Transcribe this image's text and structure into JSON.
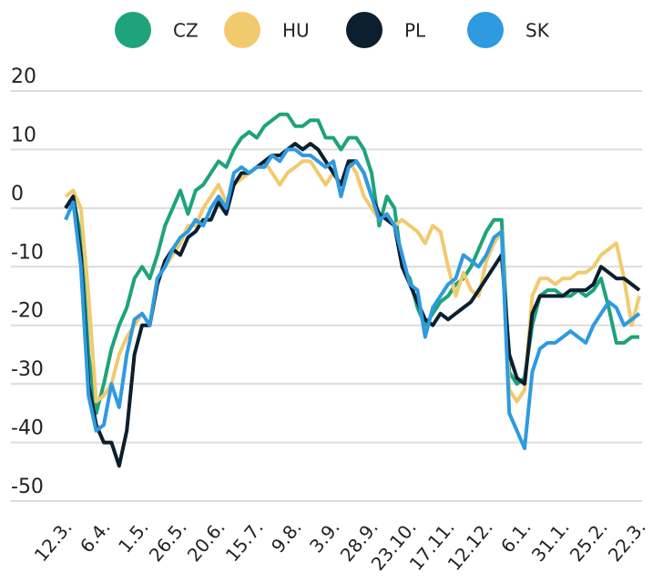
{
  "chart_data": {
    "type": "line",
    "categories": [
      "12.3.",
      null,
      null,
      null,
      null,
      "6.4.",
      null,
      null,
      null,
      null,
      "1.5.",
      null,
      null,
      null,
      null,
      "26.5.",
      null,
      null,
      null,
      null,
      "20.6.",
      null,
      null,
      null,
      null,
      "15.7.",
      null,
      null,
      null,
      null,
      "9.8.",
      null,
      null,
      null,
      null,
      "3.9.",
      null,
      null,
      null,
      null,
      "28.9.",
      null,
      null,
      null,
      null,
      "23.10.",
      null,
      null,
      null,
      null,
      "17.11.",
      null,
      null,
      null,
      null,
      "12.12.",
      null,
      null,
      null,
      null,
      "6.1.",
      null,
      null,
      null,
      null,
      "31.1.",
      null,
      null,
      null,
      null,
      "25.2.",
      null,
      null,
      null,
      null,
      "22.3."
    ],
    "series": [
      {
        "name": "CZ",
        "color": "#1ea37a",
        "values": [
          0,
          2,
          -5,
          -25,
          -35,
          -30,
          -24,
          -20,
          -17,
          -12,
          -10,
          -12,
          -8,
          -3,
          0,
          3,
          -1,
          3,
          4,
          6,
          8,
          7,
          10,
          12,
          13,
          12,
          14,
          15,
          16,
          16,
          14,
          14,
          15,
          15,
          12,
          12,
          10,
          12,
          12,
          10,
          6,
          -3,
          2,
          0,
          -10,
          -12,
          -17,
          -20,
          -18,
          -16,
          -15,
          -13,
          -12,
          -10,
          -7,
          -4,
          -2,
          -2,
          -28,
          -30,
          -29,
          -20,
          -15,
          -14,
          -14,
          -15,
          -15,
          -14,
          -15,
          -14,
          -12,
          -17,
          -23,
          -23,
          -22,
          -22
        ]
      },
      {
        "name": "HU",
        "color": "#f2ca6e",
        "values": [
          2,
          3,
          0,
          -15,
          -33,
          -32,
          -30,
          -25,
          -22,
          -20,
          -18,
          -20,
          -12,
          -10,
          -8,
          -6,
          -3,
          -3,
          0,
          2,
          4,
          1,
          4,
          5,
          6,
          7,
          8,
          6,
          4,
          6,
          7,
          8,
          8,
          6,
          4,
          6,
          4,
          8,
          6,
          2,
          0,
          -2,
          -1,
          -3,
          -2,
          -3,
          -4,
          -6,
          -3,
          -4,
          -10,
          -15,
          -11,
          -14,
          -15,
          -9,
          -6,
          -4,
          -31,
          -33,
          -31,
          -15,
          -12,
          -12,
          -13,
          -12,
          -12,
          -11,
          -11,
          -10,
          -8,
          -7,
          -6,
          -12,
          -20,
          -15
        ]
      },
      {
        "name": "PL",
        "color": "#0c1f2e",
        "values": [
          0,
          2,
          -8,
          -30,
          -37,
          -40,
          -40,
          -44,
          -38,
          -25,
          -20,
          -20,
          -13,
          -9,
          -7,
          -8,
          -5,
          -4,
          -2,
          -2,
          1,
          -1,
          4,
          6,
          6,
          7,
          8,
          9,
          9,
          10,
          11,
          10,
          11,
          10,
          8,
          6,
          4,
          8,
          8,
          6,
          2,
          -1,
          -2,
          -3,
          -10,
          -13,
          -16,
          -19,
          -20,
          -18,
          -19,
          -18,
          -17,
          -16,
          -14,
          -12,
          -10,
          -8,
          -25,
          -29,
          -30,
          -18,
          -15,
          -15,
          -15,
          -15,
          -14,
          -14,
          -14,
          -13,
          -10,
          -11,
          -12,
          -12,
          -13,
          -14
        ]
      },
      {
        "name": "SK",
        "color": "#2e9ae0",
        "values": [
          -2,
          1,
          -10,
          -32,
          -38,
          -37,
          -30,
          -34,
          -25,
          -19,
          -18,
          -20,
          -12,
          -10,
          -7,
          -5,
          -4,
          -2,
          -3,
          0,
          2,
          0,
          6,
          7,
          6,
          7,
          7,
          9,
          8,
          10,
          10,
          9,
          9,
          8,
          7,
          8,
          2,
          7,
          8,
          6,
          2,
          -2,
          -1,
          -3,
          -8,
          -13,
          -14,
          -22,
          -17,
          -15,
          -13,
          -12,
          -8,
          -9,
          -10,
          -8,
          -5,
          -4,
          -35,
          -38,
          -41,
          -28,
          -24,
          -23,
          -23,
          -22,
          -21,
          -22,
          -23,
          -20,
          -18,
          -16,
          -17,
          -20,
          -19,
          -18
        ]
      }
    ],
    "ylim": [
      -50,
      20
    ],
    "yticks": [
      -50,
      -40,
      -30,
      -20,
      -10,
      0,
      10,
      20
    ],
    "grid": true,
    "legend": "top"
  }
}
